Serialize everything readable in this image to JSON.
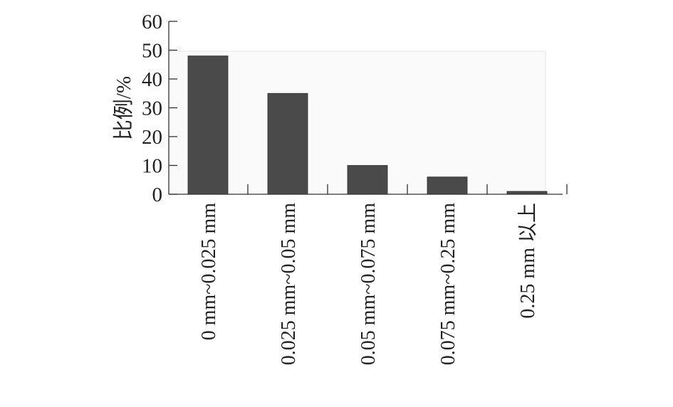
{
  "chart_data": {
    "type": "bar",
    "title": "",
    "xlabel": "",
    "ylabel": "比例/%",
    "categories": [
      "0 mm~0.025 mm",
      "0.025 mm~0.05 mm",
      "0.05 mm~0.075 mm",
      "0.075 mm~0.25 mm",
      "0.25 mm 以上"
    ],
    "values": [
      48,
      35,
      10,
      6,
      1
    ],
    "ylim": [
      0,
      60
    ],
    "yticks": [
      0,
      10,
      20,
      30,
      40,
      50,
      60
    ],
    "grid": false,
    "legend": "none",
    "colors": {
      "bar": "#4a4a4a",
      "plot_background": "#fafafa",
      "axis": "#333333"
    }
  }
}
